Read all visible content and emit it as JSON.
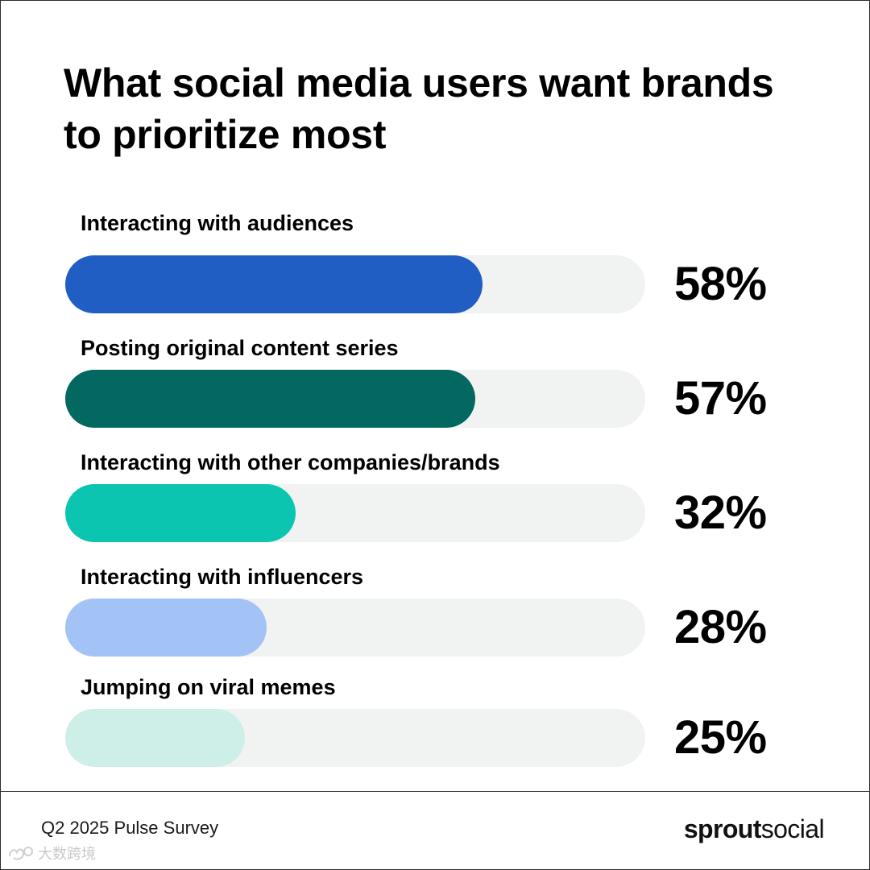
{
  "title": "What social media users want brands to prioritize most",
  "footer": {
    "source": "Q2 2025 Pulse Survey",
    "logo_bold": "sprout",
    "logo_light": "social",
    "watermark_text": "大数跨境"
  },
  "colors": {
    "track": "#f1f2f2",
    "bars": [
      "#205ec4",
      "#036860",
      "#0bc5b0",
      "#a3c2f6",
      "#cdefe8"
    ]
  },
  "chart_data": {
    "type": "bar",
    "orientation": "horizontal",
    "title": "What social media users want brands to prioritize most",
    "categories": [
      "Interacting with audiences",
      "Posting original content series",
      "Interacting with other companies/brands",
      "Interacting with influencers",
      "Jumping on viral memes"
    ],
    "values": [
      58,
      57,
      32,
      28,
      25
    ],
    "labels": [
      "58%",
      "57%",
      "32%",
      "28%",
      "25%"
    ],
    "unit": "%",
    "xlim": [
      0,
      100
    ],
    "grid": false,
    "legend": "none"
  }
}
